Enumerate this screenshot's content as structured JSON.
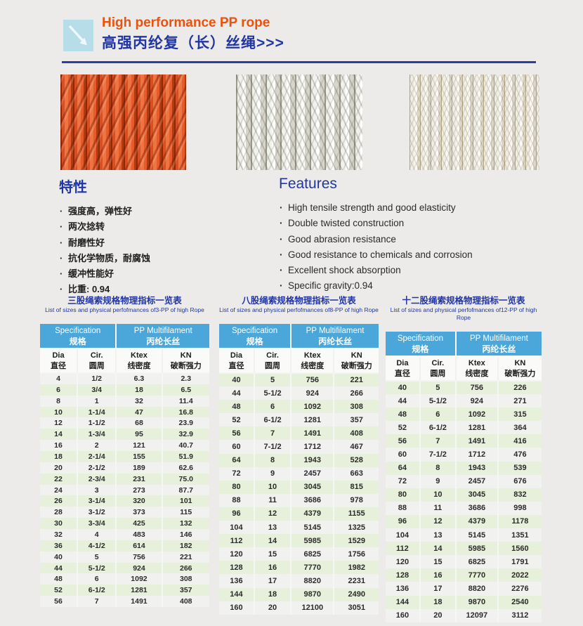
{
  "header": {
    "title_en": "High performance PP rope",
    "title_cn": "高强丙纶复（长）丝绳>>>"
  },
  "features_cn": {
    "title": "特性",
    "items": [
      "强度高，弹性好",
      "两次捻转",
      "耐磨性好",
      "抗化学物质，耐腐蚀",
      "缓冲性能好",
      "比重: 0.94"
    ]
  },
  "features_en": {
    "title": "Features",
    "items": [
      "High tensile strength and good elasticity",
      "Double twisted construction",
      "Good abrasion resistance",
      "Good resistance to chemicals and corrosion",
      "Excellent shock absorption",
      "Specific gravity:0.94"
    ]
  },
  "colors": {
    "accent_orange": "#e9520f",
    "accent_blue": "#2136a3",
    "table_header_blue": "#4ba6da",
    "row_green": "#e7f0da",
    "page_background": "#ecebe9"
  },
  "tables": [
    {
      "title_cn": "三股绳索规格物理指标一览表",
      "title_en": "List of sizes and physical perfofmances of3-PP of high Rope",
      "header": {
        "spec_en": "Specification",
        "spec_cn": "规格",
        "pp_en": "PP Multifilament",
        "pp_cn": "丙纶长丝"
      },
      "columns": [
        {
          "en": "Dia",
          "cn": "直径"
        },
        {
          "en": "Cir.",
          "cn": "圆周"
        },
        {
          "en": "Ktex",
          "cn": "线密度"
        },
        {
          "en": "KN",
          "cn": "破断强力"
        }
      ],
      "rows": [
        [
          "4",
          "1/2",
          "6.3",
          "2.3"
        ],
        [
          "6",
          "3/4",
          "18",
          "6.5"
        ],
        [
          "8",
          "1",
          "32",
          "11.4"
        ],
        [
          "10",
          "1-1/4",
          "47",
          "16.8"
        ],
        [
          "12",
          "1-1/2",
          "68",
          "23.9"
        ],
        [
          "14",
          "1-3/4",
          "95",
          "32.9"
        ],
        [
          "16",
          "2",
          "121",
          "40.7"
        ],
        [
          "18",
          "2-1/4",
          "155",
          "51.9"
        ],
        [
          "20",
          "2-1/2",
          "189",
          "62.6"
        ],
        [
          "22",
          "2-3/4",
          "231",
          "75.0"
        ],
        [
          "24",
          "3",
          "273",
          "87.7"
        ],
        [
          "26",
          "3-1/4",
          "320",
          "101"
        ],
        [
          "28",
          "3-1/2",
          "373",
          "115"
        ],
        [
          "30",
          "3-3/4",
          "425",
          "132"
        ],
        [
          "32",
          "4",
          "483",
          "146"
        ],
        [
          "36",
          "4-1/2",
          "614",
          "182"
        ],
        [
          "40",
          "5",
          "756",
          "221"
        ],
        [
          "44",
          "5-1/2",
          "924",
          "266"
        ],
        [
          "48",
          "6",
          "1092",
          "308"
        ],
        [
          "52",
          "6-1/2",
          "1281",
          "357"
        ],
        [
          "56",
          "7",
          "1491",
          "408"
        ]
      ]
    },
    {
      "title_cn": "八股绳索规格物理指标一览表",
      "title_en": "List of sizes and physical perfofmances of8-PP of high Rope",
      "header": {
        "spec_en": "Specification",
        "spec_cn": "规格",
        "pp_en": "PP Multifilament",
        "pp_cn": "丙纶长丝"
      },
      "columns": [
        {
          "en": "Dia",
          "cn": "直径"
        },
        {
          "en": "Cir.",
          "cn": "圆周"
        },
        {
          "en": "Ktex",
          "cn": "线密度"
        },
        {
          "en": "KN",
          "cn": "破断强力"
        }
      ],
      "rows": [
        [
          "40",
          "5",
          "756",
          "221"
        ],
        [
          "44",
          "5-1/2",
          "924",
          "266"
        ],
        [
          "48",
          "6",
          "1092",
          "308"
        ],
        [
          "52",
          "6-1/2",
          "1281",
          "357"
        ],
        [
          "56",
          "7",
          "1491",
          "408"
        ],
        [
          "60",
          "7-1/2",
          "1712",
          "467"
        ],
        [
          "64",
          "8",
          "1943",
          "528"
        ],
        [
          "72",
          "9",
          "2457",
          "663"
        ],
        [
          "80",
          "10",
          "3045",
          "815"
        ],
        [
          "88",
          "11",
          "3686",
          "978"
        ],
        [
          "96",
          "12",
          "4379",
          "1155"
        ],
        [
          "104",
          "13",
          "5145",
          "1325"
        ],
        [
          "112",
          "14",
          "5985",
          "1529"
        ],
        [
          "120",
          "15",
          "6825",
          "1756"
        ],
        [
          "128",
          "16",
          "7770",
          "1982"
        ],
        [
          "136",
          "17",
          "8820",
          "2231"
        ],
        [
          "144",
          "18",
          "9870",
          "2490"
        ],
        [
          "160",
          "20",
          "12100",
          "3051"
        ]
      ]
    },
    {
      "title_cn": "十二股绳索规格物理指标一览表",
      "title_en": "List of sizes and physical perfofmances of12-PP of high Rope",
      "header": {
        "spec_en": "Specification",
        "spec_cn": "规格",
        "pp_en": "PP Multifilament",
        "pp_cn": "丙纶长丝"
      },
      "columns": [
        {
          "en": "Dia",
          "cn": "直径"
        },
        {
          "en": "Cir.",
          "cn": "圆周"
        },
        {
          "en": "Ktex",
          "cn": "线密度"
        },
        {
          "en": "KN",
          "cn": "破断强力"
        }
      ],
      "rows": [
        [
          "40",
          "5",
          "756",
          "226"
        ],
        [
          "44",
          "5-1/2",
          "924",
          "271"
        ],
        [
          "48",
          "6",
          "1092",
          "315"
        ],
        [
          "52",
          "6-1/2",
          "1281",
          "364"
        ],
        [
          "56",
          "7",
          "1491",
          "416"
        ],
        [
          "60",
          "7-1/2",
          "1712",
          "476"
        ],
        [
          "64",
          "8",
          "1943",
          "539"
        ],
        [
          "72",
          "9",
          "2457",
          "676"
        ],
        [
          "80",
          "10",
          "3045",
          "832"
        ],
        [
          "88",
          "11",
          "3686",
          "998"
        ],
        [
          "96",
          "12",
          "4379",
          "1178"
        ],
        [
          "104",
          "13",
          "5145",
          "1351"
        ],
        [
          "112",
          "14",
          "5985",
          "1560"
        ],
        [
          "120",
          "15",
          "6825",
          "1791"
        ],
        [
          "128",
          "16",
          "7770",
          "2022"
        ],
        [
          "136",
          "17",
          "8820",
          "2276"
        ],
        [
          "144",
          "18",
          "9870",
          "2540"
        ],
        [
          "160",
          "20",
          "12097",
          "3112"
        ]
      ]
    }
  ]
}
